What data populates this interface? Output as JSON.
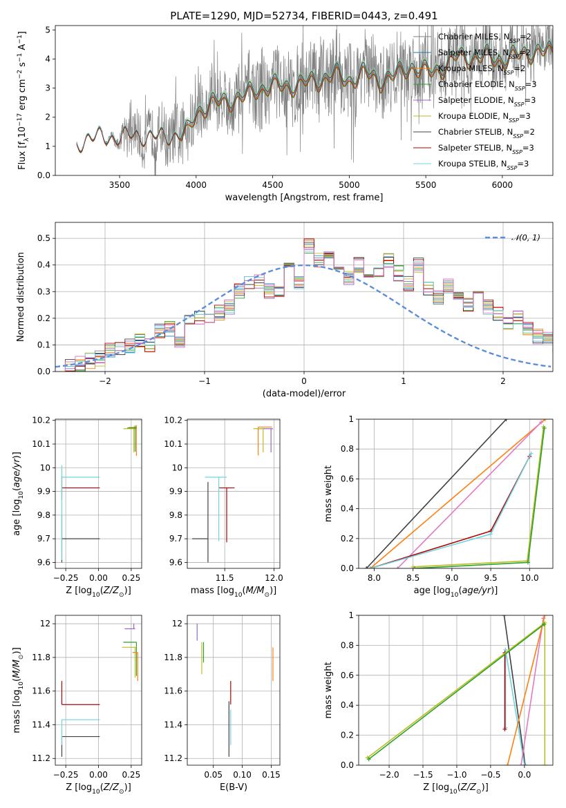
{
  "colors": {
    "Chabrier MILES": "#7f7f7f",
    "Salpeter MILES": "#1f77b4",
    "Kroupa MILES": "#ff7f0e",
    "Chabrier ELODIE": "#2ca02c",
    "Salpeter ELODIE": "#9467bd",
    "Kroupa ELODIE": "#bcbd22",
    "Chabrier STELIB": "#404040",
    "Salpeter STELIB": "#b00000",
    "Kroupa STELIB": "#6fd3e0",
    "pink": "#e377c2",
    "normal": "#5b8ddb"
  },
  "chart_data": [
    {
      "id": "spectrum",
      "type": "line",
      "title": "PLATE=1290, MJD=52734, FIBERID=0443, z=0.491",
      "xlabel": "wavelength [Angstrom, rest frame]",
      "ylabel": "Flux [f_λ 10^-17 erg cm^-2 s^-1 A^-1]",
      "xlim": [
        3080,
        6330
      ],
      "ylim": [
        0,
        5.15
      ],
      "xticks": [
        3500,
        4000,
        4500,
        5000,
        5500,
        6000
      ],
      "yticks": [
        0,
        1,
        2,
        3,
        4,
        5
      ],
      "grid": false,
      "legend_position": "top-right",
      "legend": [
        {
          "label": "Chabrier MILES, N_SSP=2",
          "base": "Chabrier MILES, N",
          "sub": "SSP",
          "tail": "=2"
        },
        {
          "label": "Salpeter MILES, N_SSP=2",
          "base": "Salpeter MILES, N",
          "sub": "SSP",
          "tail": "=2"
        },
        {
          "label": "Kroupa MILES, N_SSP=2",
          "base": "Kroupa MILES, N",
          "sub": "SSP",
          "tail": "=2"
        },
        {
          "label": "Chabrier ELODIE, N_SSP=3",
          "base": "Chabrier ELODIE, N",
          "sub": "SSP",
          "tail": "=3"
        },
        {
          "label": "Salpeter ELODIE, N_SSP=3",
          "base": "Salpeter ELODIE, N",
          "sub": "SSP",
          "tail": "=3"
        },
        {
          "label": "Kroupa ELODIE, N_SSP=3",
          "base": "Kroupa ELODIE, N",
          "sub": "SSP",
          "tail": "=3"
        },
        {
          "label": "Chabrier STELIB, N_SSP=2",
          "base": "Chabrier STELIB, N",
          "sub": "SSP",
          "tail": "=2"
        },
        {
          "label": "Salpeter STELIB, N_SSP=3",
          "base": "Salpeter STELIB, N",
          "sub": "SSP",
          "tail": "=3"
        },
        {
          "label": "Kroupa STELIB, N_SSP=3",
          "base": "Kroupa STELIB, N",
          "sub": "SSP",
          "tail": "=3"
        }
      ],
      "model_continuum": {
        "x": [
          3220,
          3300,
          3400,
          3500,
          3600,
          3700,
          3800,
          3900,
          3950,
          4000,
          4100,
          4200,
          4300,
          4400,
          4500,
          4600,
          4700,
          4800,
          4900,
          5000,
          5100,
          5200,
          5300,
          5400,
          5500,
          5600,
          5700,
          5800,
          5900,
          6000,
          6100,
          6200
        ],
        "y": [
          1.05,
          1.35,
          1.3,
          1.35,
          1.4,
          1.35,
          1.35,
          1.45,
          1.55,
          2.2,
          2.55,
          2.6,
          2.75,
          3.0,
          3.15,
          3.1,
          3.25,
          3.3,
          3.55,
          3.3,
          3.6,
          3.3,
          3.5,
          3.8,
          3.6,
          3.7,
          4.15,
          4.1,
          4.15,
          4.0,
          4.2,
          4.3
        ]
      },
      "data_envelope": {
        "x": [
          3220,
          3300,
          3400,
          3500,
          3600,
          3700,
          3800,
          3900,
          3950,
          4000,
          4100,
          4200,
          4300,
          4400,
          4500,
          4600,
          4700,
          4800,
          4900,
          5000,
          5100,
          5200,
          5300,
          5400,
          5500,
          5600,
          5700,
          5800,
          5900,
          6000,
          6100,
          6200
        ],
        "noise": [
          0.05,
          0.05,
          0.1,
          0.35,
          1.2,
          1.2,
          1.4,
          1.5,
          1.6,
          1.4,
          1.5,
          1.5,
          1.6,
          1.7,
          1.7,
          1.8,
          1.8,
          1.8,
          2.0,
          1.8,
          1.9,
          1.9,
          1.8,
          1.8,
          1.6,
          1.5,
          1.4,
          1.5,
          1.4,
          1.4,
          1.3,
          1.2
        ]
      },
      "model_offsets": [
        0.0,
        -0.06,
        -0.1,
        -0.15,
        0.03,
        0.05,
        0.02,
        -0.12,
        0.1
      ]
    },
    {
      "id": "residuals",
      "type": "step",
      "xlabel": "(data-model)/error",
      "ylabel": "Normed distribution",
      "xlim": [
        -2.5,
        2.5
      ],
      "ylim": [
        0,
        0.56
      ],
      "xticks": [
        -2,
        -1,
        0,
        1,
        2
      ],
      "yticks": [
        0.0,
        0.1,
        0.2,
        0.3,
        0.4,
        0.5
      ],
      "grid": true,
      "legend_position": "top-right",
      "legend": [
        {
          "label": "N(0,1)",
          "base": "𝒩(0, 1)"
        }
      ],
      "bin_width": 0.1,
      "bin_start": -2.5,
      "base_hist": [
        0.01,
        0.02,
        0.03,
        0.04,
        0.05,
        0.08,
        0.09,
        0.1,
        0.12,
        0.1,
        0.15,
        0.16,
        0.12,
        0.19,
        0.2,
        0.21,
        0.22,
        0.24,
        0.3,
        0.33,
        0.34,
        0.3,
        0.31,
        0.38,
        0.33,
        0.47,
        0.42,
        0.45,
        0.4,
        0.35,
        0.4,
        0.38,
        0.36,
        0.42,
        0.37,
        0.33,
        0.4,
        0.31,
        0.28,
        0.32,
        0.27,
        0.25,
        0.3,
        0.24,
        0.22,
        0.18,
        0.2,
        0.16,
        0.13,
        0.13,
        0.1,
        0.08,
        0.09,
        0.06,
        0.05,
        0.04,
        0.04,
        0.05,
        0.03,
        0.03,
        0.02,
        0.02,
        0.02,
        0.02,
        0.02,
        0.02,
        0.01,
        0.01,
        0.01,
        0.01,
        0.01,
        0.01,
        0.01,
        0.01,
        0.01,
        0.01,
        0.01,
        0.01,
        0.01,
        0.01
      ],
      "gaussian": {
        "mu": 0,
        "sigma": 1
      }
    },
    {
      "id": "age-vs-Z",
      "type": "errorbar",
      "xlabel": "Z [log10(Z/Z⊙)]",
      "ylabel": "age [log10(age/yr)]",
      "xlim": [
        -0.33,
        0.33
      ],
      "ylim": [
        9.575,
        10.205
      ],
      "xticks": [
        -0.25,
        0.0,
        0.25
      ],
      "xtick_labels": [
        "−0.25",
        "0.00",
        "0.25"
      ],
      "yticks": [
        9.6,
        9.7,
        9.8,
        9.9,
        10.0,
        10.1,
        10.2
      ],
      "grid": true,
      "points": [
        {
          "c": "Chabrier STELIB",
          "x": -0.28,
          "xerr": [
            0.0,
            0.29
          ],
          "y": 9.7,
          "yerr": [
            0.1,
            0.1
          ]
        },
        {
          "c": "Salpeter STELIB",
          "x": -0.28,
          "xerr": [
            0.0,
            0.29
          ],
          "y": 9.915,
          "yerr": [
            0.05,
            0.05
          ]
        },
        {
          "c": "Kroupa STELIB",
          "x": -0.28,
          "xerr": [
            0.0,
            0.29
          ],
          "y": 9.96,
          "yerr": [
            0.35,
            0.05
          ]
        },
        {
          "c": "Kroupa MILES",
          "x": 0.29,
          "xerr": [
            0.06,
            0.0
          ],
          "y": 10.17,
          "yerr": [
            0.12,
            0.01
          ]
        },
        {
          "c": "Kroupa ELODIE",
          "x": 0.27,
          "xerr": [
            0.08,
            0.02
          ],
          "y": 10.165,
          "yerr": [
            0.1,
            0.01
          ]
        },
        {
          "c": "Chabrier ELODIE",
          "x": 0.28,
          "xerr": [
            0.06,
            0.01
          ],
          "y": 10.168,
          "yerr": [
            0.1,
            0.01
          ]
        }
      ]
    },
    {
      "id": "age-vs-mass",
      "type": "errorbar",
      "xlabel": "mass [log10(M/M⊙)]",
      "xlim": [
        11.12,
        12.06
      ],
      "ylim": [
        9.575,
        10.205
      ],
      "xticks": [
        11.5,
        12.0
      ],
      "xtick_labels": [
        "11.5",
        "12.0"
      ],
      "yticks": [
        9.6,
        9.7,
        9.8,
        9.9,
        10.0,
        10.1,
        10.2
      ],
      "grid": true,
      "points": [
        {
          "c": "Chabrier STELIB",
          "x": 11.33,
          "xerr": [
            0.16,
            0.0
          ],
          "y": 9.7,
          "yerr": [
            0.1,
            0.24
          ]
        },
        {
          "c": "Salpeter STELIB",
          "x": 11.52,
          "xerr": [
            0.08,
            0.08
          ],
          "y": 9.915,
          "yerr": [
            0.23,
            0.0
          ]
        },
        {
          "c": "Kroupa STELIB",
          "x": 11.44,
          "xerr": [
            0.14,
            0.08
          ],
          "y": 9.96,
          "yerr": [
            0.27,
            0.0
          ]
        },
        {
          "c": "Kroupa MILES",
          "x": 11.84,
          "xerr": [
            0.0,
            0.14
          ],
          "y": 10.172,
          "yerr": [
            0.12,
            0.0
          ]
        },
        {
          "c": "Salpeter ELODIE",
          "x": 11.97,
          "xerr": [
            0.14,
            0.02
          ],
          "y": 10.165,
          "yerr": [
            0.1,
            0.0
          ]
        },
        {
          "c": "Kroupa ELODIE",
          "x": 11.89,
          "xerr": [
            0.1,
            0.0
          ],
          "y": 10.165,
          "yerr": [
            0.1,
            0.0
          ]
        }
      ]
    },
    {
      "id": "weight-vs-age",
      "type": "line",
      "xlabel": "age [log10(age/yr)]",
      "ylabel": "mass weight",
      "xlim": [
        7.8,
        10.3
      ],
      "ylim": [
        0,
        1.0
      ],
      "xticks": [
        8.0,
        8.5,
        9.0,
        9.5,
        10.0
      ],
      "xtick_labels": [
        "8.0",
        "8.5",
        "9.0",
        "9.5",
        "10.0"
      ],
      "yticks": [
        0.0,
        0.2,
        0.4,
        0.6,
        0.8,
        1.0
      ],
      "grid": true,
      "series": [
        {
          "c": "Chabrier STELIB",
          "x": [
            7.9,
            9.7
          ],
          "y": [
            0.0,
            1.0
          ]
        },
        {
          "c": "Kroupa MILES",
          "x": [
            7.95,
            10.2
          ],
          "y": [
            0.0,
            1.0
          ]
        },
        {
          "c": "pink",
          "x": [
            8.3,
            10.15
          ],
          "y": [
            0.0,
            0.98
          ]
        },
        {
          "c": "Salpeter STELIB",
          "x": [
            7.95,
            9.5,
            10.0
          ],
          "y": [
            0.0,
            0.25,
            0.75
          ]
        },
        {
          "c": "Kroupa STELIB",
          "x": [
            7.95,
            9.5,
            10.02
          ],
          "y": [
            0.0,
            0.23,
            0.77
          ]
        },
        {
          "c": "Kroupa ELODIE",
          "x": [
            8.5,
            9.97,
            10.18
          ],
          "y": [
            0.01,
            0.05,
            0.95
          ]
        },
        {
          "c": "Chabrier ELODIE",
          "x": [
            8.52,
            9.98,
            10.19
          ],
          "y": [
            0.0,
            0.04,
            0.94
          ]
        }
      ]
    },
    {
      "id": "mass-vs-Z",
      "type": "errorbar",
      "xlabel": "Z [log10(Z/Z⊙)]",
      "ylabel": "mass [log10(M/M⊙)]",
      "xlim": [
        -0.33,
        0.33
      ],
      "ylim": [
        11.16,
        12.05
      ],
      "xticks": [
        -0.25,
        0.0,
        0.25
      ],
      "xtick_labels": [
        "−0.25",
        "0.00",
        "0.25"
      ],
      "yticks": [
        11.2,
        11.4,
        11.6,
        11.8,
        12.0
      ],
      "grid": true,
      "points": [
        {
          "c": "Chabrier STELIB",
          "x": -0.28,
          "xerr": [
            0.0,
            0.29
          ],
          "y": 11.33,
          "yerr": [
            0.12,
            0.0
          ]
        },
        {
          "c": "Kroupa STELIB",
          "x": -0.28,
          "xerr": [
            0.0,
            0.29
          ],
          "y": 11.43,
          "yerr": [
            0.15,
            0.0
          ]
        },
        {
          "c": "Salpeter STELIB",
          "x": -0.28,
          "xerr": [
            0.0,
            0.29
          ],
          "y": 11.52,
          "yerr": [
            0.0,
            0.14
          ]
        },
        {
          "c": "Salpeter ELODIE",
          "x": 0.27,
          "xerr": [
            0.07,
            0.01
          ],
          "y": 11.97,
          "yerr": [
            0.0,
            0.03
          ]
        },
        {
          "c": "Chabrier ELODIE",
          "x": 0.29,
          "xerr": [
            0.1,
            0.0
          ],
          "y": 11.89,
          "yerr": [
            0.2,
            0.0
          ]
        },
        {
          "c": "Kroupa ELODIE",
          "x": 0.28,
          "xerr": [
            0.1,
            0.01
          ],
          "y": 11.86,
          "yerr": [
            0.18,
            0.0
          ]
        },
        {
          "c": "Kroupa MILES",
          "x": 0.3,
          "xerr": [
            0.04,
            0.0
          ],
          "y": 11.83,
          "yerr": [
            0.17,
            0.0
          ]
        }
      ]
    },
    {
      "id": "mass-vs-EBV",
      "type": "errorbar",
      "xlabel": "E(B-V)",
      "xlim": [
        0.005,
        0.165
      ],
      "ylim": [
        11.16,
        12.05
      ],
      "xticks": [
        0.05,
        0.1,
        0.15
      ],
      "xtick_labels": [
        "0.05",
        "0.10",
        "0.15"
      ],
      "yticks": [
        11.2,
        11.4,
        11.6,
        11.8,
        12.0
      ],
      "grid": true,
      "points": [
        {
          "c": "Salpeter ELODIE",
          "x": 0.022,
          "xerr": [
            0,
            0
          ],
          "y": 11.97,
          "yerr": [
            0.07,
            0.03
          ]
        },
        {
          "c": "Kroupa ELODIE",
          "x": 0.03,
          "xerr": [
            0,
            0
          ],
          "y": 11.86,
          "yerr": [
            0.16,
            0.03
          ]
        },
        {
          "c": "Chabrier ELODIE",
          "x": 0.033,
          "xerr": [
            0,
            0
          ],
          "y": 11.87,
          "yerr": [
            0.1,
            0.02
          ]
        },
        {
          "c": "Chabrier STELIB",
          "x": 0.077,
          "xerr": [
            0,
            0
          ],
          "y": 11.33,
          "yerr": [
            0.12,
            0.21
          ]
        },
        {
          "c": "Kroupa STELIB",
          "x": 0.08,
          "xerr": [
            0,
            0
          ],
          "y": 11.43,
          "yerr": [
            0.15,
            0.06
          ]
        },
        {
          "c": "Salpeter STELIB",
          "x": 0.08,
          "xerr": [
            0,
            0
          ],
          "y": 11.52,
          "yerr": [
            0.0,
            0.14
          ]
        },
        {
          "c": "Kroupa MILES",
          "x": 0.153,
          "xerr": [
            0,
            0
          ],
          "y": 11.76,
          "yerr": [
            0.1,
            0.1
          ]
        }
      ]
    },
    {
      "id": "weight-vs-Z",
      "type": "line",
      "xlabel": "Z [log10(Z/Z⊙)]",
      "ylabel": "mass weight",
      "xlim": [
        -2.45,
        0.42
      ],
      "ylim": [
        0,
        1.0
      ],
      "xticks": [
        -2.0,
        -1.5,
        -1.0,
        -0.5,
        0.0
      ],
      "xtick_labels": [
        "−2.0",
        "−1.5",
        "−1.0",
        "−0.5",
        "0.0"
      ],
      "yticks": [
        0.0,
        0.2,
        0.4,
        0.6,
        0.8,
        1.0
      ],
      "grid": true,
      "series": [
        {
          "c": "Chabrier STELIB",
          "x": [
            -0.3,
            0.01
          ],
          "y": [
            1.0,
            0.0
          ]
        },
        {
          "c": "Kroupa STELIB",
          "x": [
            -0.28,
            -0.28,
            0.0
          ],
          "y": [
            0.25,
            0.77,
            0.0
          ]
        },
        {
          "c": "Salpeter STELIB",
          "x": [
            -0.29,
            -0.29
          ],
          "y": [
            0.24,
            0.75
          ]
        },
        {
          "c": "pink",
          "x": [
            -0.05,
            0.28
          ],
          "y": [
            0.0,
            0.98
          ]
        },
        {
          "c": "Kroupa MILES",
          "x": [
            -0.25,
            0.3
          ],
          "y": [
            0.0,
            1.0
          ]
        },
        {
          "c": "Kroupa ELODIE",
          "x": [
            -2.32,
            0.3,
            0.3
          ],
          "y": [
            0.05,
            0.95,
            0.0
          ]
        },
        {
          "c": "Chabrier ELODIE",
          "x": [
            -2.3,
            0.29
          ],
          "y": [
            0.04,
            0.94
          ]
        }
      ]
    }
  ]
}
